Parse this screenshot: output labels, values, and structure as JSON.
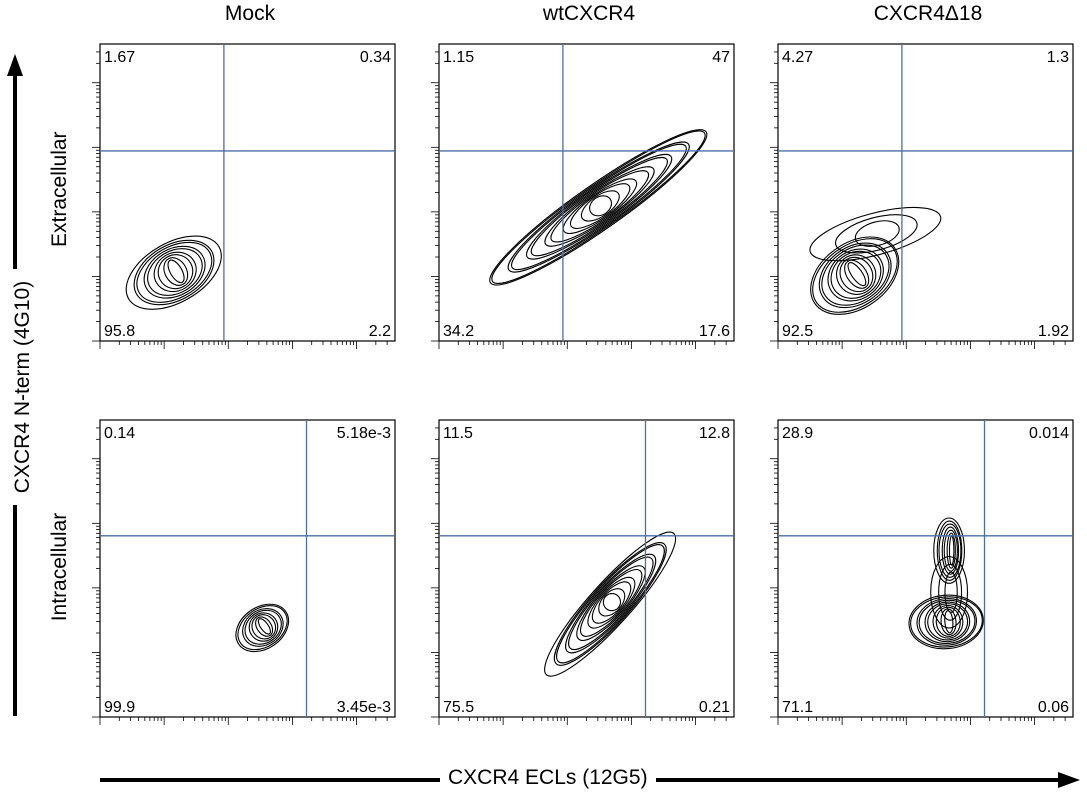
{
  "columns": [
    "Mock",
    "wtCXCR4",
    "CXCR4Δ18"
  ],
  "rows": [
    "Extracellular",
    "Intracellular"
  ],
  "y_axis_title": "CXCR4 N-term (4G10)",
  "x_axis_title": "CXCR4 ECLs (12G5)",
  "gate_color": "#4a6fa5",
  "chart_data": {
    "type": "contour",
    "x_axis": "CXCR4 ECLs (12G5)",
    "y_axis": "CXCR4 N-term (4G10)",
    "scale": "log",
    "panels": [
      {
        "row": "Extracellular",
        "column": "Mock",
        "quadrants": {
          "upper_left": "1.67",
          "upper_right": "0.34",
          "lower_left": "95.8",
          "lower_right": "2.2"
        },
        "gate": {
          "x": 0.42,
          "y": 0.36
        }
      },
      {
        "row": "Extracellular",
        "column": "wtCXCR4",
        "quadrants": {
          "upper_left": "1.15",
          "upper_right": "47",
          "lower_left": "34.2",
          "lower_right": "17.6"
        },
        "gate": {
          "x": 0.42,
          "y": 0.36
        }
      },
      {
        "row": "Extracellular",
        "column": "CXCR4Δ18",
        "quadrants": {
          "upper_left": "4.27",
          "upper_right": "1.3",
          "lower_left": "92.5",
          "lower_right": "1.92"
        },
        "gate": {
          "x": 0.42,
          "y": 0.36
        }
      },
      {
        "row": "Intracellular",
        "column": "Mock",
        "quadrants": {
          "upper_left": "0.14",
          "upper_right": "5.18e-3",
          "lower_left": "99.9",
          "lower_right": "3.45e-3"
        },
        "gate": {
          "x": 0.7,
          "y": 0.39
        }
      },
      {
        "row": "Intracellular",
        "column": "wtCXCR4",
        "quadrants": {
          "upper_left": "11.5",
          "upper_right": "12.8",
          "lower_left": "75.5",
          "lower_right": "0.21"
        },
        "gate": {
          "x": 0.7,
          "y": 0.39
        }
      },
      {
        "row": "Intracellular",
        "column": "CXCR4Δ18",
        "quadrants": {
          "upper_left": "28.9",
          "upper_right": "0.014",
          "lower_left": "71.1",
          "lower_right": "0.06"
        },
        "gate": {
          "x": 0.7,
          "y": 0.39
        }
      }
    ]
  }
}
